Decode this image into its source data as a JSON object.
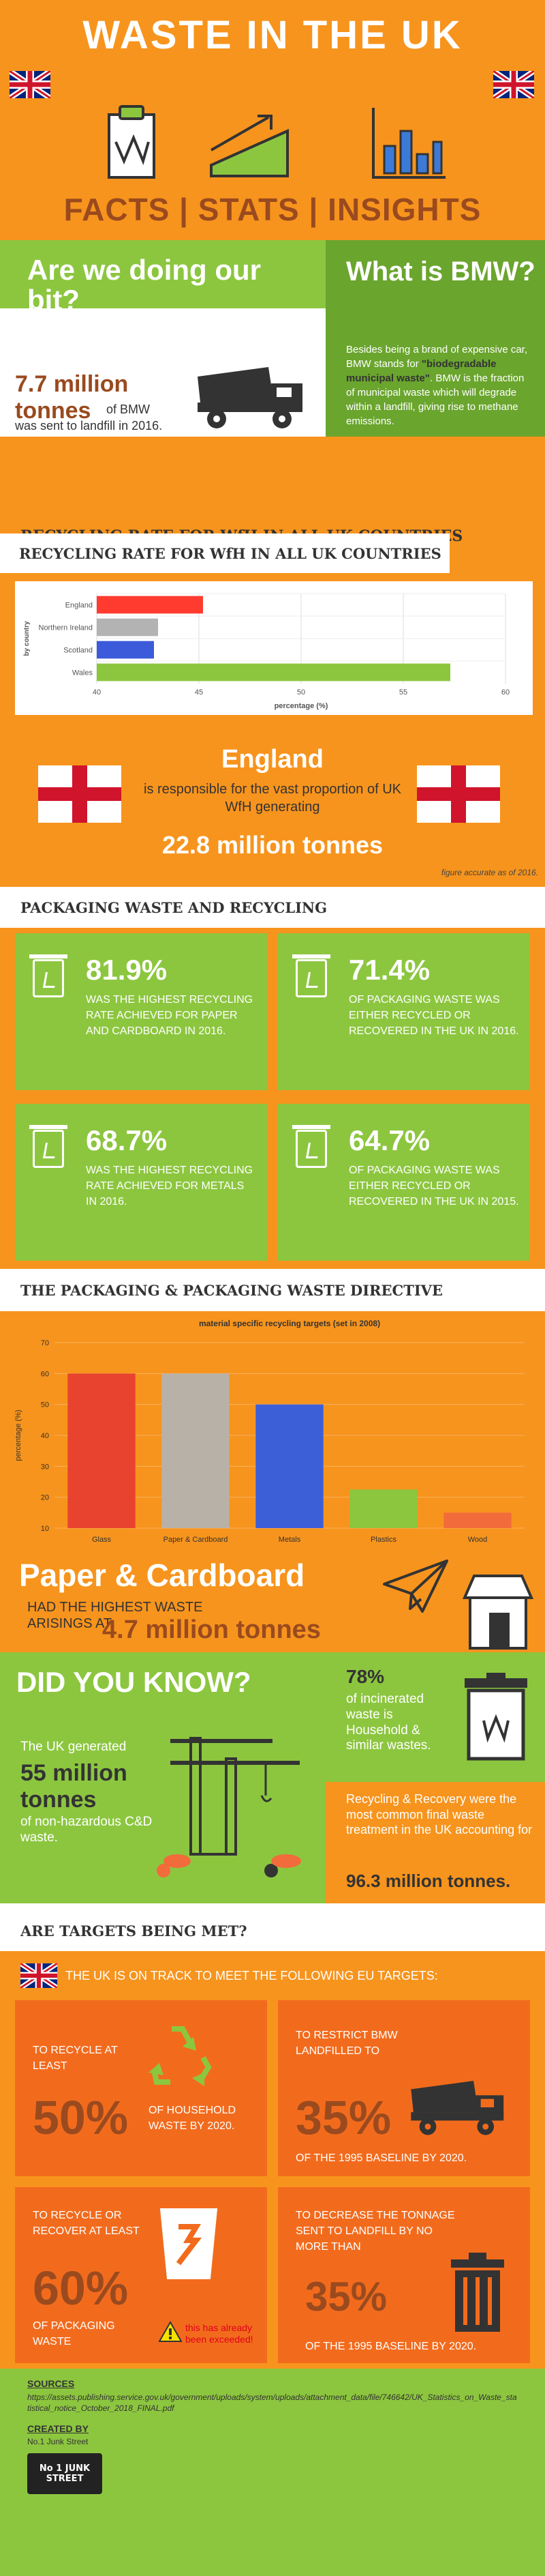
{
  "header": {
    "title": "WASTE IN THE UK",
    "subtitle": "FACTS | STATS | INSIGHTS"
  },
  "doing_our_bit": {
    "heading": "Are we doing our bit?",
    "stat": "7.7 million tonnes",
    "of_bmw": "of BMW",
    "text": "was sent to landfill in 2016."
  },
  "bmw": {
    "heading": "What is BMW?",
    "text1": "Besides being a brand of expensive car, BMW stands for",
    "text_bold": "\"biodegradable municipal waste\"",
    "text2": ". BMW is the fraction of municipal waste which will degrade within a landfill, giving rise to methane emissions."
  },
  "recycling_heading": "RECYCLING RATE FOR WfH IN ALL UK COUNTRIES",
  "chart_data": [
    {
      "type": "bar",
      "orientation": "horizontal",
      "categories": [
        "England",
        "Northern Ireland",
        "Scotland",
        "Wales"
      ],
      "values": [
        45.2,
        43.0,
        42.8,
        57.3
      ],
      "colors": [
        "#ff3b30",
        "#b3b3b3",
        "#3b5bdb",
        "#8cc63f"
      ],
      "xlabel": "percentage (%)",
      "ylabel": "by country",
      "xlim": [
        40,
        60
      ],
      "xticks": [
        40,
        45,
        50,
        55,
        60
      ],
      "grid": true
    },
    {
      "type": "bar",
      "title": "material specific recycling targets (set in 2008)",
      "categories": [
        "Glass",
        "Paper & Cardboard",
        "Metals",
        "Plastics",
        "Wood"
      ],
      "values": [
        60,
        60,
        50,
        22.5,
        15
      ],
      "colors": [
        "#e8432e",
        "#b8b1a8",
        "#3c5fd8",
        "#8cc63f",
        "#f26b3a"
      ],
      "ylabel": "percentage (%)",
      "ylim": [
        10,
        70
      ],
      "yticks": [
        10,
        20,
        30,
        40,
        50,
        60,
        70
      ],
      "grid": true
    }
  ],
  "england": {
    "heading": "England",
    "text": "is responsible for the vast proportion of UK WfH generating",
    "stat": "22.8 million tonnes",
    "note": "figure accurate as of 2016."
  },
  "packaging_heading": "PACKAGING WASTE AND RECYCLING",
  "packaging_stats": [
    {
      "value": "81.9%",
      "text": "WAS THE HIGHEST RECYCLING RATE ACHIEVED FOR PAPER AND CARDBOARD IN 2016."
    },
    {
      "value": "71.4%",
      "text": "OF PACKAGING WASTE WAS EITHER RECYCLED OR RECOVERED IN THE UK IN 2016."
    },
    {
      "value": "68.7%",
      "text": "WAS THE HIGHEST RECYCLING RATE ACHIEVED FOR METALS IN 2016."
    },
    {
      "value": "64.7%",
      "text": "OF PACKAGING WASTE WAS EITHER RECYCLED OR RECOVERED IN THE UK IN 2015."
    }
  ],
  "directive_heading": "THE PACKAGING & PACKAGING WASTE DIRECTIVE",
  "paper": {
    "heading": "Paper & Cardboard",
    "text": "HAD THE HIGHEST WASTE ARISINGS AT",
    "stat": "4.7 million tonnes"
  },
  "did_you_know": {
    "heading": "DID YOU KNOW?",
    "text1": "The UK generated",
    "stat": "55 million tonnes",
    "text2": "of non-hazardous C&D waste.",
    "pct": "78%",
    "pct_text": "of incinerated waste is Household & similar wastes.",
    "recovery_text": "Recycling & Recovery were the most common final waste treatment in the UK accounting for",
    "recovery_stat": "96.3 million tonnes."
  },
  "targets_heading": "ARE TARGETS BEING MET?",
  "targets_intro": "THE UK IS ON TRACK TO MEET THE FOLLOWING EU TARGETS:",
  "targets": [
    {
      "pre": "TO RECYCLE AT LEAST",
      "value": "50%",
      "post": "OF HOUSEHOLD WASTE BY 2020."
    },
    {
      "pre": "TO RESTRICT BMW LANDFILLED TO",
      "value": "35%",
      "post": "OF THE 1995 BASELINE BY 2020."
    },
    {
      "pre": "TO RECYCLE OR RECOVER AT LEAST",
      "value": "60%",
      "post": "OF PACKAGING WASTE",
      "note": "this has already been exceeded!"
    },
    {
      "pre": "TO DECREASE THE TONNAGE SENT TO LANDFILL BY NO MORE THAN",
      "value": "35%",
      "post": "OF THE 1995 BASELINE BY 2020."
    }
  ],
  "footer": {
    "sources_label": "SOURCES",
    "source_url": "https://assets.publishing.service.gov.uk/government/uploads/system/uploads/attachment_data/file/746642/UK_Statistics_on_Waste_statistical_notice_October_2018_FINAL.pdf",
    "created_label": "CREATED BY",
    "creator": "No.1 Junk Street",
    "logo_text": "No 1 JUNK STREET"
  },
  "colors": {
    "orange": "#f7941d",
    "green": "#8cc63f",
    "dark": "#333333",
    "rust": "#9a4a1e"
  }
}
